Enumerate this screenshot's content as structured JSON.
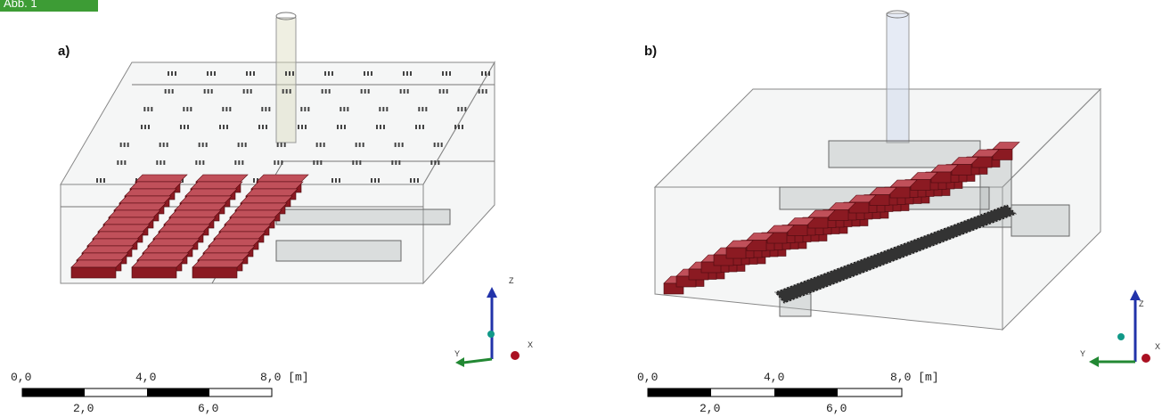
{
  "badge": "Abb. 1",
  "panels": [
    {
      "label": "a)",
      "scale_top": [
        "0,0",
        "4,0",
        "8,0 [m]"
      ],
      "scale_bottom": [
        "2,0",
        "6,0"
      ],
      "axes": [
        "Z",
        "Y",
        "X"
      ]
    },
    {
      "label": "b)",
      "scale_top": [
        "0,0",
        "4,0",
        "8,0 [m]"
      ],
      "scale_bottom": [
        "2,0",
        "6,0"
      ],
      "axes": [
        "Z",
        "Y",
        "X"
      ]
    }
  ]
}
